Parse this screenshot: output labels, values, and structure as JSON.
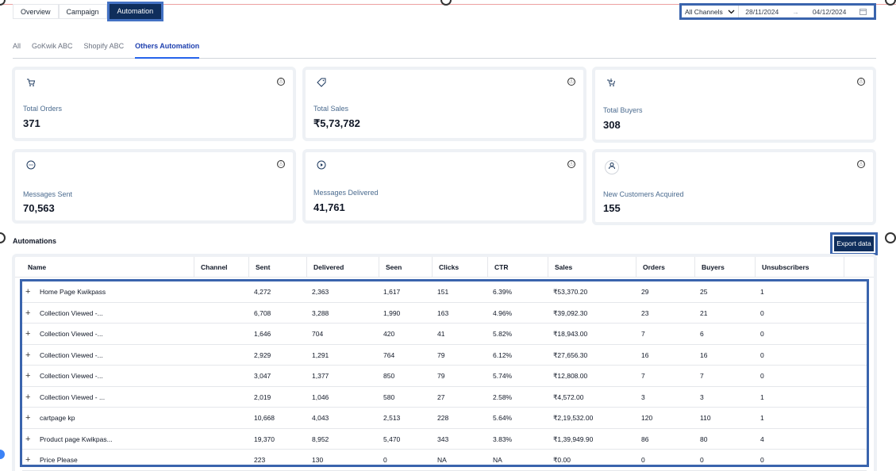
{
  "top_tabs": [
    "Overview",
    "Campaign",
    "Automation"
  ],
  "top_tab_active": "Automation",
  "filters": {
    "channel": "All Channels",
    "date_from": "28/11/2024",
    "date_arrow": "→",
    "date_to": "04/12/2024"
  },
  "sub_tabs": [
    "All",
    "GoKwik ABC",
    "Shopify ABC",
    "Others Automation"
  ],
  "sub_tab_active": "Others Automation",
  "cards": [
    {
      "icon": "cart-icon",
      "label": "Total Orders",
      "value": "371"
    },
    {
      "icon": "tag-icon",
      "label": "Total Sales",
      "value": "₹5,73,782"
    },
    {
      "icon": "buyers-cart-icon",
      "label": "Total Buyers",
      "value": "308"
    },
    {
      "icon": "chat-icon",
      "label": "Messages Sent",
      "value": "70,563"
    },
    {
      "icon": "play-icon",
      "label": "Messages Delivered",
      "value": "41,761"
    },
    {
      "icon": "user-icon",
      "label": "New Customers Acquired",
      "value": "155"
    }
  ],
  "info_icon": "ⓘ",
  "section_title": "Automations",
  "export_label": "Export data",
  "table": {
    "headers": [
      "Name",
      "Channel",
      "Sent",
      "Delivered",
      "Seen",
      "Clicks",
      "CTR",
      "Sales",
      "Orders",
      "Buyers",
      "Unsubscribers"
    ],
    "rows": [
      [
        "Home Page Kwikpass",
        "",
        "4,272",
        "2,363",
        "1,617",
        "151",
        "6.39%",
        "₹53,370.20",
        "29",
        "25",
        "1"
      ],
      [
        "Collection Viewed -...",
        "",
        "6,708",
        "3,288",
        "1,990",
        "163",
        "4.96%",
        "₹39,092.30",
        "23",
        "21",
        "0"
      ],
      [
        "Collection Viewed -...",
        "",
        "1,646",
        "704",
        "420",
        "41",
        "5.82%",
        "₹18,943.00",
        "7",
        "6",
        "0"
      ],
      [
        "Collection Viewed -...",
        "",
        "2,929",
        "1,291",
        "764",
        "79",
        "6.12%",
        "₹27,656.30",
        "16",
        "16",
        "0"
      ],
      [
        "Collection Viewed -...",
        "",
        "3,047",
        "1,377",
        "850",
        "79",
        "5.74%",
        "₹12,808.00",
        "7",
        "7",
        "0"
      ],
      [
        "Collection Viewed - ...",
        "",
        "2,019",
        "1,046",
        "580",
        "27",
        "2.58%",
        "₹4,572.00",
        "3",
        "3",
        "1"
      ],
      [
        "cartpage kp",
        "",
        "10,668",
        "4,043",
        "2,513",
        "228",
        "5.64%",
        "₹2,19,532.00",
        "120",
        "110",
        "1"
      ],
      [
        "Product page Kwikpas...",
        "",
        "19,370",
        "8,952",
        "5,470",
        "343",
        "3.83%",
        "₹1,39,949.90",
        "86",
        "80",
        "4"
      ],
      [
        "Price Please",
        "",
        "223",
        "130",
        "0",
        "NA",
        "NA",
        "₹0.00",
        "0",
        "0",
        "0"
      ]
    ]
  }
}
